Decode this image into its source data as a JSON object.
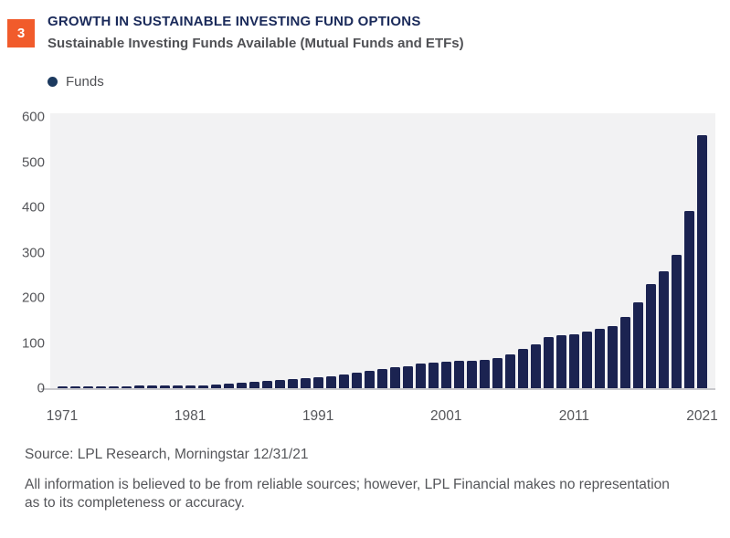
{
  "page": {
    "figure_number": "3",
    "title": "GROWTH IN SUSTAINABLE INVESTING FUND OPTIONS",
    "subtitle": "Sustainable Investing Funds Available (Mutual Funds and ETFs)"
  },
  "colors": {
    "badge_orange": "#F15B2B",
    "title_navy": "#1A2A5A",
    "bar_navy": "#1B2351",
    "legend_dot_navy": "#1C3A5F",
    "plot_background": "#F2F2F3",
    "axis_gray": "#C8C8CC",
    "text_gray": "#55565A"
  },
  "legend": {
    "label": "Funds"
  },
  "chart_data": {
    "type": "bar",
    "title": "GROWTH IN SUSTAINABLE INVESTING FUND OPTIONS",
    "subtitle": "Sustainable Investing Funds Available (Mutual Funds and ETFs)",
    "xlabel": "",
    "ylabel": "",
    "ylim": [
      0,
      600
    ],
    "yticks": [
      0,
      100,
      200,
      300,
      400,
      500,
      600
    ],
    "xticks": [
      1971,
      1981,
      1991,
      2001,
      2011,
      2021
    ],
    "grid": false,
    "legend_position": "top-left",
    "series": [
      {
        "name": "Funds",
        "x": [
          1971,
          1972,
          1973,
          1974,
          1975,
          1976,
          1977,
          1978,
          1979,
          1980,
          1981,
          1982,
          1983,
          1984,
          1985,
          1986,
          1987,
          1988,
          1989,
          1990,
          1991,
          1992,
          1993,
          1994,
          1995,
          1996,
          1997,
          1998,
          1999,
          2000,
          2001,
          2002,
          2003,
          2004,
          2005,
          2006,
          2007,
          2008,
          2009,
          2010,
          2011,
          2012,
          2013,
          2014,
          2015,
          2016,
          2017,
          2018,
          2019,
          2020,
          2021
        ],
        "values": [
          5,
          5,
          5,
          5,
          5,
          5,
          6,
          6,
          6,
          6,
          6,
          7,
          9,
          11,
          13,
          15,
          17,
          19,
          21,
          22,
          25,
          27,
          31,
          35,
          38,
          43,
          46,
          48,
          54,
          57,
          59,
          60,
          61,
          63,
          66,
          74,
          86,
          98,
          114,
          117,
          120,
          126,
          132,
          138,
          158,
          190,
          230,
          258,
          295,
          392,
          560
        ]
      }
    ]
  },
  "footer": {
    "source": "Source: LPL Research, Morningstar 12/31/21",
    "disclaimer_lines": [
      "All information is believed to be from reliable sources; however, LPL Financial makes no representation",
      "as to its completeness or accuracy."
    ]
  }
}
